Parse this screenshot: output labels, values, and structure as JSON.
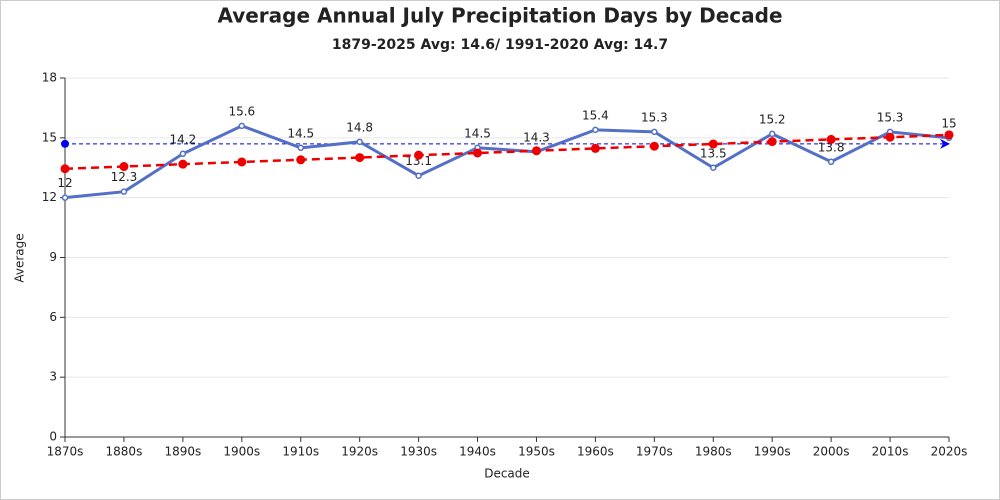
{
  "chart_data": {
    "type": "line",
    "title": "Average Annual July Precipitation Days by Decade",
    "subtitle": "1879-2025 Avg: 14.6/ 1991-2020 Avg: 14.7",
    "x_label": "Decade",
    "y_label": "Average",
    "categories": [
      "1870s",
      "1880s",
      "1890s",
      "1900s",
      "1910s",
      "1920s",
      "1930s",
      "1940s",
      "1950s",
      "1960s",
      "1970s",
      "1980s",
      "1990s",
      "2000s",
      "2010s",
      "2020s"
    ],
    "series": [
      {
        "color": "#5470c6",
        "data_labels": true,
        "values": [
          12,
          12.3,
          14.2,
          15.6,
          14.5,
          14.8,
          13.1,
          14.5,
          14.3,
          15.4,
          15.3,
          13.5,
          15.2,
          13.8,
          15.3,
          15
        ]
      },
      {
        "color": "#ee0000",
        "dashed": true,
        "values": [
          13.45,
          13.56,
          13.68,
          13.79,
          13.9,
          14.01,
          14.13,
          14.24,
          14.35,
          14.47,
          14.58,
          14.69,
          14.81,
          14.92,
          15.03,
          15.15
        ]
      }
    ],
    "average_line": {
      "value": 14.7,
      "color": "#0000ee"
    },
    "ylim": [
      0,
      18
    ],
    "yticks": [
      0,
      3,
      6,
      9,
      12,
      15,
      18
    ],
    "grid": true
  }
}
